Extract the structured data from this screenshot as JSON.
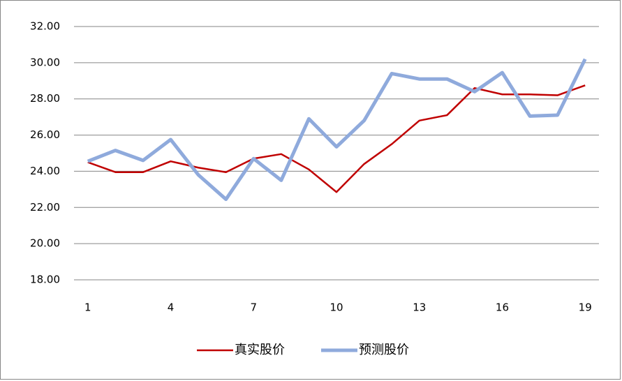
{
  "chart_data": {
    "type": "line",
    "categories": [
      1,
      null,
      null,
      4,
      null,
      null,
      7,
      null,
      null,
      10,
      null,
      null,
      13,
      null,
      null,
      16,
      null,
      null,
      19
    ],
    "series": [
      {
        "name": "真实股价",
        "color": "#c00000",
        "values": [
          24.5,
          23.95,
          23.95,
          24.55,
          24.2,
          23.95,
          24.7,
          24.95,
          24.1,
          22.85,
          24.4,
          25.5,
          26.8,
          27.1,
          28.6,
          28.25,
          28.25,
          28.2,
          28.75
        ]
      },
      {
        "name": "预测股价",
        "color": "#8faadc",
        "values": [
          24.55,
          25.15,
          24.6,
          25.75,
          23.8,
          22.45,
          24.7,
          23.5,
          26.9,
          25.35,
          26.8,
          29.4,
          29.1,
          29.1,
          28.4,
          29.45,
          27.05,
          27.1,
          30.2
        ]
      }
    ],
    "ylim": [
      18,
      32
    ],
    "yticks": [
      {
        "value": 18,
        "label": "18.00"
      },
      {
        "value": 20,
        "label": "20.00"
      },
      {
        "value": 22,
        "label": "22.00"
      },
      {
        "value": 24,
        "label": "24.00"
      },
      {
        "value": 26,
        "label": "26.00"
      },
      {
        "value": 28,
        "label": "28.00"
      },
      {
        "value": 30,
        "label": "30.00"
      },
      {
        "value": 32,
        "label": "32.00"
      }
    ],
    "grid": true,
    "legend": "bottom"
  }
}
